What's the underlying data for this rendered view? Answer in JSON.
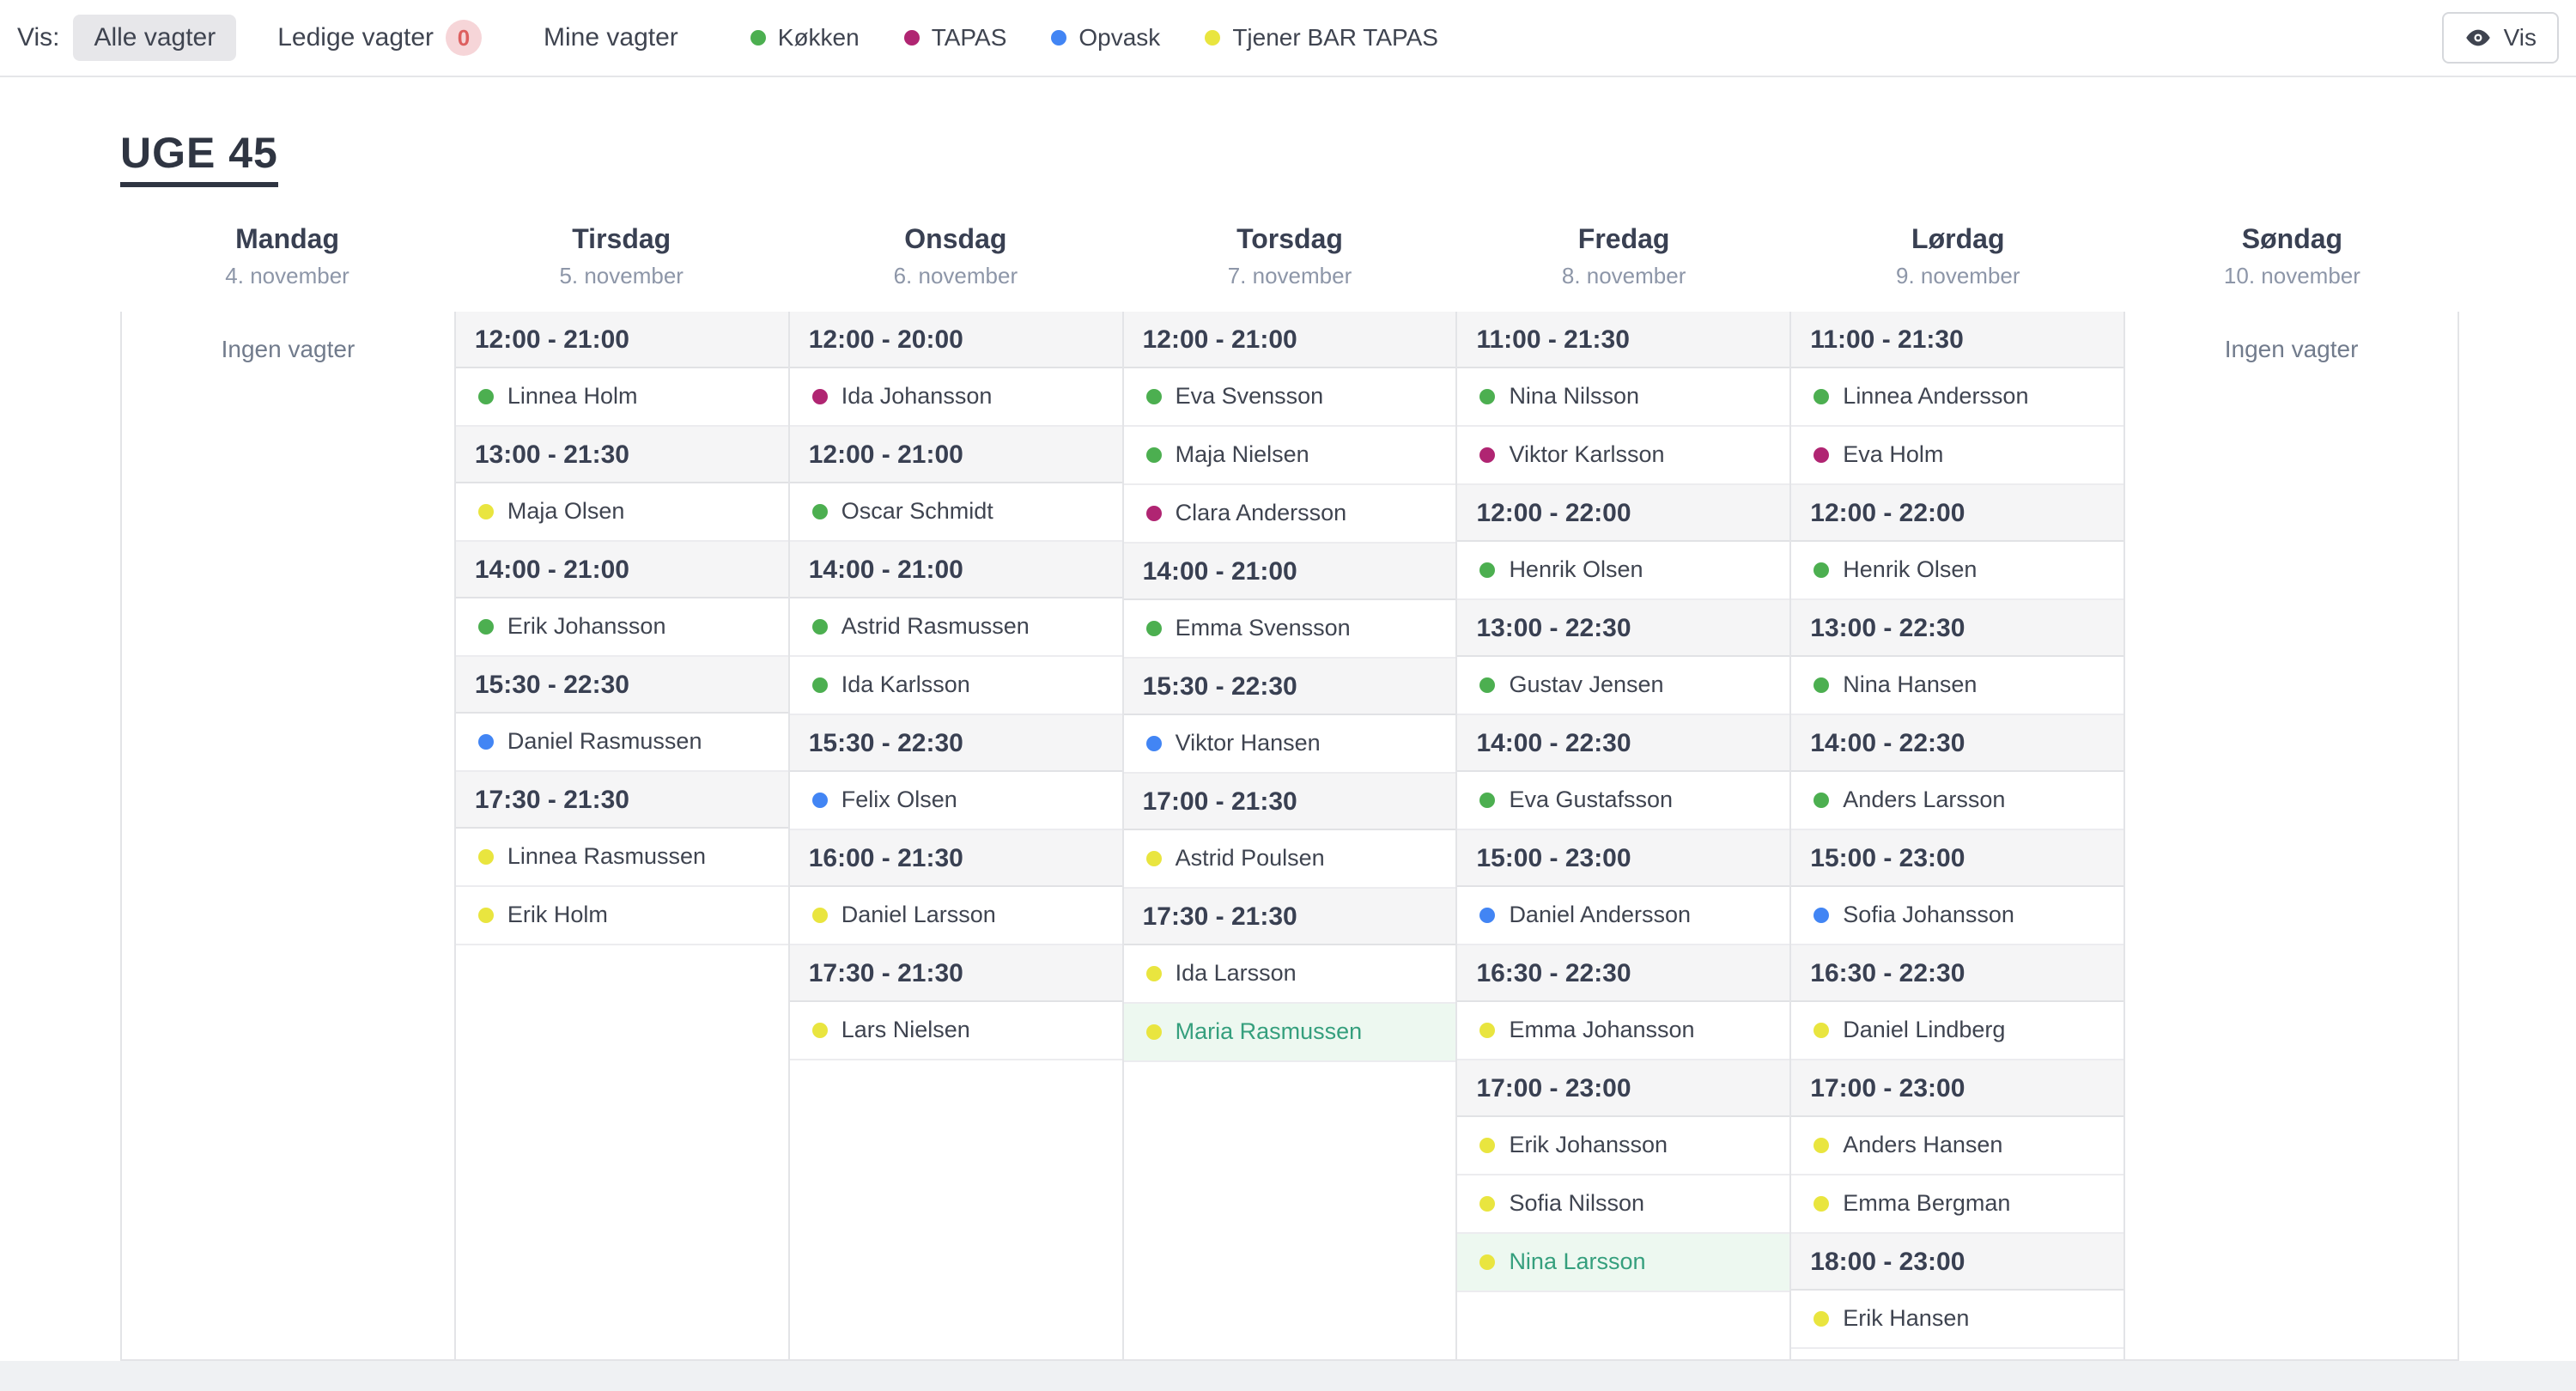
{
  "colors": {
    "kokken": "#4caf50",
    "tapas": "#b02572",
    "opvask": "#4285f4",
    "tjener": "#e9e53f",
    "highlight_bg": "#edf8f0",
    "highlight_text": "#359f7d"
  },
  "topbar": {
    "show_label": "Vis:",
    "filters": [
      {
        "label": "Alle vagter",
        "active": true
      },
      {
        "label": "Ledige vagter",
        "active": false,
        "badge": "0"
      },
      {
        "label": "Mine vagter",
        "active": false
      }
    ],
    "legend": [
      {
        "label": "Køkken",
        "color_key": "kokken"
      },
      {
        "label": "TAPAS",
        "color_key": "tapas"
      },
      {
        "label": "Opvask",
        "color_key": "opvask"
      },
      {
        "label": "Tjener BAR TAPAS",
        "color_key": "tjener"
      }
    ],
    "show_button_label": "Vis"
  },
  "week": {
    "title": "UGE 45",
    "no_shifts_label": "Ingen vagter",
    "days": [
      {
        "name": "Mandag",
        "date": "4. november",
        "groups": []
      },
      {
        "name": "Tirsdag",
        "date": "5. november",
        "groups": [
          {
            "time": "12:00 - 21:00",
            "shifts": [
              {
                "name": "Linnea Holm",
                "color_key": "kokken"
              }
            ]
          },
          {
            "time": "13:00 - 21:30",
            "shifts": [
              {
                "name": "Maja Olsen",
                "color_key": "tjener"
              }
            ]
          },
          {
            "time": "14:00 - 21:00",
            "shifts": [
              {
                "name": "Erik Johansson",
                "color_key": "kokken"
              }
            ]
          },
          {
            "time": "15:30 - 22:30",
            "shifts": [
              {
                "name": "Daniel Rasmussen",
                "color_key": "opvask"
              }
            ]
          },
          {
            "time": "17:30 - 21:30",
            "shifts": [
              {
                "name": "Linnea Rasmussen",
                "color_key": "tjener"
              },
              {
                "name": "Erik Holm",
                "color_key": "tjener"
              }
            ]
          }
        ]
      },
      {
        "name": "Onsdag",
        "date": "6. november",
        "groups": [
          {
            "time": "12:00 - 20:00",
            "shifts": [
              {
                "name": "Ida Johansson",
                "color_key": "tapas"
              }
            ]
          },
          {
            "time": "12:00 - 21:00",
            "shifts": [
              {
                "name": "Oscar Schmidt",
                "color_key": "kokken"
              }
            ]
          },
          {
            "time": "14:00 - 21:00",
            "shifts": [
              {
                "name": "Astrid Rasmussen",
                "color_key": "kokken"
              },
              {
                "name": "Ida Karlsson",
                "color_key": "kokken"
              }
            ]
          },
          {
            "time": "15:30 - 22:30",
            "shifts": [
              {
                "name": "Felix Olsen",
                "color_key": "opvask"
              }
            ]
          },
          {
            "time": "16:00 - 21:30",
            "shifts": [
              {
                "name": "Daniel Larsson",
                "color_key": "tjener"
              }
            ]
          },
          {
            "time": "17:30 - 21:30",
            "shifts": [
              {
                "name": "Lars Nielsen",
                "color_key": "tjener"
              }
            ]
          }
        ]
      },
      {
        "name": "Torsdag",
        "date": "7. november",
        "groups": [
          {
            "time": "12:00 - 21:00",
            "shifts": [
              {
                "name": "Eva Svensson",
                "color_key": "kokken"
              },
              {
                "name": "Maja Nielsen",
                "color_key": "kokken"
              },
              {
                "name": "Clara Andersson",
                "color_key": "tapas"
              }
            ]
          },
          {
            "time": "14:00 - 21:00",
            "shifts": [
              {
                "name": "Emma Svensson",
                "color_key": "kokken"
              }
            ]
          },
          {
            "time": "15:30 - 22:30",
            "shifts": [
              {
                "name": "Viktor Hansen",
                "color_key": "opvask"
              }
            ]
          },
          {
            "time": "17:00 - 21:30",
            "shifts": [
              {
                "name": "Astrid Poulsen",
                "color_key": "tjener"
              }
            ]
          },
          {
            "time": "17:30 - 21:30",
            "shifts": [
              {
                "name": "Ida Larsson",
                "color_key": "tjener"
              },
              {
                "name": "Maria Rasmussen",
                "color_key": "tjener",
                "highlighted": true
              }
            ]
          }
        ]
      },
      {
        "name": "Fredag",
        "date": "8. november",
        "groups": [
          {
            "time": "11:00 - 21:30",
            "shifts": [
              {
                "name": "Nina Nilsson",
                "color_key": "kokken"
              },
              {
                "name": "Viktor Karlsson",
                "color_key": "tapas"
              }
            ]
          },
          {
            "time": "12:00 - 22:00",
            "shifts": [
              {
                "name": "Henrik Olsen",
                "color_key": "kokken"
              }
            ]
          },
          {
            "time": "13:00 - 22:30",
            "shifts": [
              {
                "name": "Gustav Jensen",
                "color_key": "kokken"
              }
            ]
          },
          {
            "time": "14:00 - 22:30",
            "shifts": [
              {
                "name": "Eva Gustafsson",
                "color_key": "kokken"
              }
            ]
          },
          {
            "time": "15:00 - 23:00",
            "shifts": [
              {
                "name": "Daniel Andersson",
                "color_key": "opvask"
              }
            ]
          },
          {
            "time": "16:30 - 22:30",
            "shifts": [
              {
                "name": "Emma Johansson",
                "color_key": "tjener"
              }
            ]
          },
          {
            "time": "17:00 - 23:00",
            "shifts": [
              {
                "name": "Erik Johansson",
                "color_key": "tjener"
              },
              {
                "name": "Sofia Nilsson",
                "color_key": "tjener"
              },
              {
                "name": "Nina Larsson",
                "color_key": "tjener",
                "highlighted": true
              }
            ]
          }
        ]
      },
      {
        "name": "Lørdag",
        "date": "9. november",
        "groups": [
          {
            "time": "11:00 - 21:30",
            "shifts": [
              {
                "name": "Linnea Andersson",
                "color_key": "kokken"
              },
              {
                "name": "Eva Holm",
                "color_key": "tapas"
              }
            ]
          },
          {
            "time": "12:00 - 22:00",
            "shifts": [
              {
                "name": "Henrik Olsen",
                "color_key": "kokken"
              }
            ]
          },
          {
            "time": "13:00 - 22:30",
            "shifts": [
              {
                "name": "Nina Hansen",
                "color_key": "kokken"
              }
            ]
          },
          {
            "time": "14:00 - 22:30",
            "shifts": [
              {
                "name": "Anders Larsson",
                "color_key": "kokken"
              }
            ]
          },
          {
            "time": "15:00 - 23:00",
            "shifts": [
              {
                "name": "Sofia Johansson",
                "color_key": "opvask"
              }
            ]
          },
          {
            "time": "16:30 - 22:30",
            "shifts": [
              {
                "name": "Daniel Lindberg",
                "color_key": "tjener"
              }
            ]
          },
          {
            "time": "17:00 - 23:00",
            "shifts": [
              {
                "name": "Anders Hansen",
                "color_key": "tjener"
              },
              {
                "name": "Emma Bergman",
                "color_key": "tjener"
              }
            ]
          },
          {
            "time": "18:00 - 23:00",
            "shifts": [
              {
                "name": "Erik Hansen",
                "color_key": "tjener"
              }
            ]
          }
        ]
      },
      {
        "name": "Søndag",
        "date": "10. november",
        "groups": []
      }
    ]
  }
}
